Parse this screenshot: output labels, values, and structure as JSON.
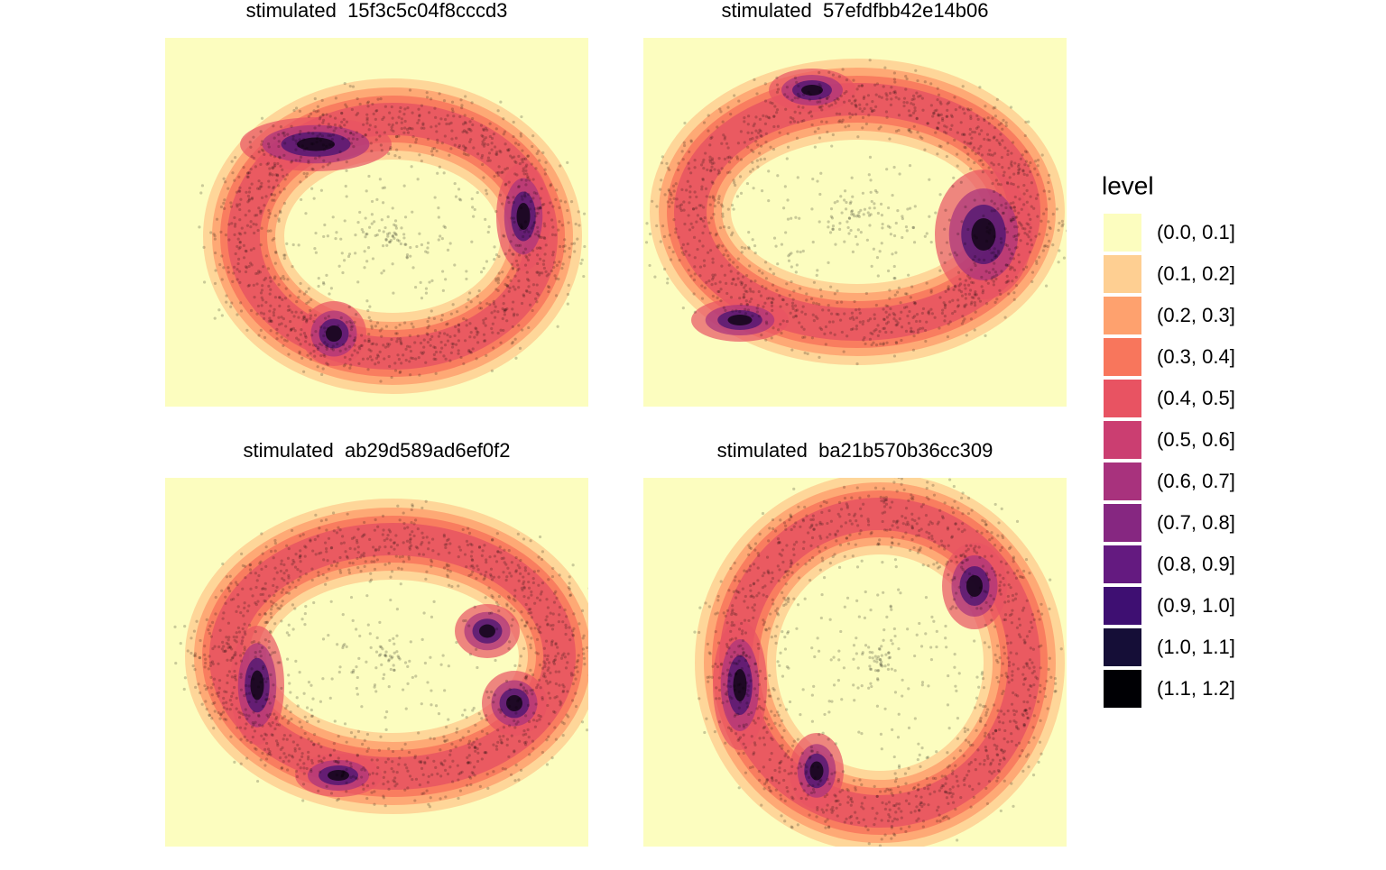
{
  "chart_data": {
    "type": "density",
    "facets": [
      {
        "title": "stimulated  15f3c5c04f8cccd3"
      },
      {
        "title": "stimulated  57efdfbb42e14b06"
      },
      {
        "title": "stimulated  ab29d589ad6ef0f2"
      },
      {
        "title": "stimulated  ba21b570b36cc309"
      }
    ],
    "legend": {
      "title": "level",
      "entries": [
        {
          "label": "(0.0, 0.1]",
          "color": "#fcfdbf"
        },
        {
          "label": "(0.1, 0.2]",
          "color": "#fecf92"
        },
        {
          "label": "(0.2, 0.3]",
          "color": "#fea16e"
        },
        {
          "label": "(0.3, 0.4]",
          "color": "#f8765c"
        },
        {
          "label": "(0.4, 0.5]",
          "color": "#e85362"
        },
        {
          "label": "(0.5, 0.6]",
          "color": "#cb3e71"
        },
        {
          "label": "(0.6, 0.7]",
          "color": "#a8327d"
        },
        {
          "label": "(0.7, 0.8]",
          "color": "#862781"
        },
        {
          "label": "(0.8, 0.9]",
          "color": "#641a80"
        },
        {
          "label": "(0.9, 1.0]",
          "color": "#3e0f72"
        },
        {
          "label": "(1.0, 1.1]",
          "color": "#150e37"
        },
        {
          "label": "(1.1, 1.2]",
          "color": "#000004"
        }
      ]
    }
  }
}
